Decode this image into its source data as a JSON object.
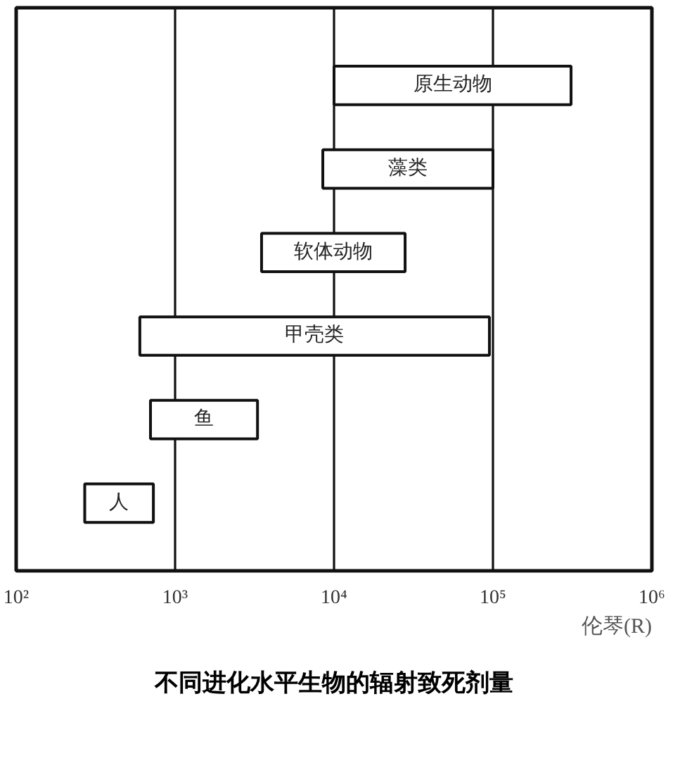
{
  "chart_data": {
    "type": "bar",
    "orientation": "horizontal",
    "title": "不同进化水平生物的辐射致死剂量",
    "xlabel": "伦琴(R)",
    "categories": [
      "原生动物",
      "藻类",
      "软体动物",
      "甲壳类",
      "鱼",
      "人"
    ],
    "base": [
      10000,
      8500,
      3500,
      600,
      700,
      270
    ],
    "values": [
      300000,
      91500,
      24500,
      94400,
      2600,
      460
    ],
    "color": "#ffffff",
    "log": "x",
    "xlim": [
      100,
      1000000
    ],
    "xticks": [
      {
        "value": 100,
        "label": "10²"
      },
      {
        "value": 1000,
        "label": "10³"
      },
      {
        "value": 10000,
        "label": "10⁴"
      },
      {
        "value": 100000,
        "label": "10⁵"
      },
      {
        "value": 1000000,
        "label": "10⁶"
      }
    ],
    "grid": "x",
    "tick_labels": "x"
  }
}
